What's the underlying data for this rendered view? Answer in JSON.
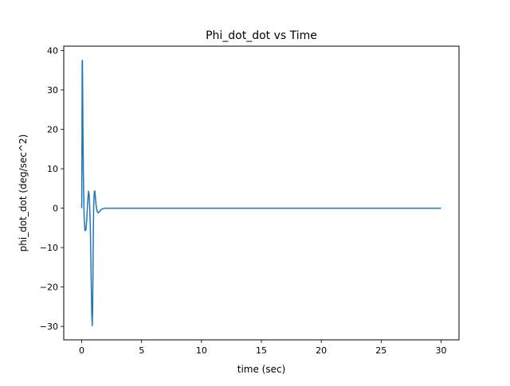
{
  "chart_data": {
    "type": "line",
    "title": "Phi_dot_dot vs Time",
    "xlabel": "time (sec)",
    "ylabel": "phi_dot_dot (deg/sec^2)",
    "xlim": [
      -1.5,
      31.5
    ],
    "ylim": [
      -33.4,
      41.1
    ],
    "xticks": [
      0,
      5,
      10,
      15,
      20,
      25,
      30
    ],
    "yticks": [
      -30,
      -20,
      -10,
      0,
      10,
      20,
      30,
      40
    ],
    "grid": false,
    "legend": "none",
    "series": [
      {
        "color": "#1f77b4",
        "x": [
          0,
          0.02,
          0.04,
          0.06,
          0.08,
          0.1,
          0.14,
          0.2,
          0.27,
          0.35,
          0.42,
          0.47,
          0.52,
          0.57,
          0.62,
          0.67,
          0.72,
          0.76,
          0.8,
          0.84,
          0.88,
          0.91,
          0.94,
          0.97,
          1.0,
          1.03,
          1.06,
          1.09,
          1.12,
          1.16,
          1.2,
          1.25,
          1.3,
          1.38,
          1.45,
          1.55,
          1.65,
          1.8,
          2.0,
          2.3,
          2.7,
          3.2,
          5,
          10,
          15,
          20,
          25,
          30
        ],
        "y": [
          0,
          15,
          37.3,
          37.5,
          30,
          20,
          8,
          -2,
          -5.7,
          -5.5,
          -3,
          0,
          2.5,
          4.3,
          3.5,
          0,
          -5,
          -12,
          -20,
          -27,
          -29.8,
          -26,
          -17,
          -6,
          0.5,
          3,
          4.3,
          4.4,
          3.6,
          2.2,
          0.8,
          -0.2,
          -0.8,
          -1.2,
          -1.0,
          -0.6,
          -0.3,
          -0.1,
          0,
          0,
          0,
          0,
          0,
          0,
          0,
          0,
          0,
          0
        ]
      }
    ]
  }
}
